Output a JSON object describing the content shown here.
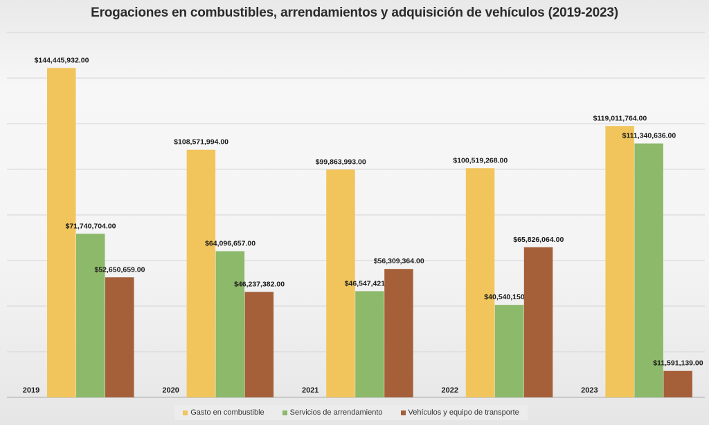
{
  "chart_data": {
    "type": "bar",
    "title": "Erogaciones en combustibles, arrendamientos y adquisición de vehículos (2019-2023)",
    "xlabel": "",
    "ylabel": "",
    "categories": [
      "2019",
      "2020",
      "2021",
      "2022",
      "2023"
    ],
    "series": [
      {
        "name": "Gasto en combustible",
        "color": "#f2c55c",
        "values": [
          144445932,
          108571994,
          99863993,
          100519268,
          119011764
        ],
        "labels": [
          "$144,445,932.00",
          "$108,571,994.00",
          "$99,863,993.00",
          "$100,519,268.00",
          "$119,011,764.00"
        ]
      },
      {
        "name": "Servicios de arrendamiento",
        "color": "#8db96a",
        "values": [
          71740704,
          64096657,
          46547421,
          40540150,
          111340636
        ],
        "labels": [
          "$71,740,704.00",
          "$64,096,657.00",
          "$46,547,421.00",
          "$40,540,150.00",
          "$111,340,636.00"
        ]
      },
      {
        "name": "Vehículos y equipo de transporte",
        "color": "#a5603a",
        "values": [
          52650659,
          46237382,
          56309364,
          65826064,
          11591139
        ],
        "labels": [
          "$52,650,659.00",
          "$46,237,382.00",
          "$56,309,364.00",
          "$65,826,064.00",
          "$11,591,139.00"
        ]
      }
    ],
    "ylim": [
      0,
      160000000
    ],
    "grid": true,
    "legend": "bottom"
  }
}
